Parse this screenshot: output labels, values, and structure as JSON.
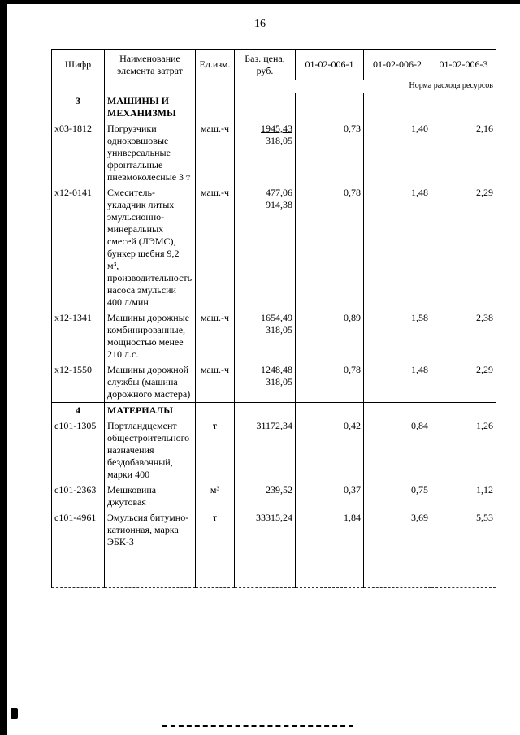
{
  "page_number": "16",
  "table": {
    "headers": {
      "code": "Шифр",
      "name": "Наименование элемента затрат",
      "unit": "Ед.изм.",
      "price": "Баз. цена, руб.",
      "norm1": "01-02-006-1",
      "norm2": "01-02-006-2",
      "norm3": "01-02-006-3"
    },
    "subheader": "Норма расхода ресурсов",
    "sections": [
      {
        "number": "3",
        "title": "МАШИНЫ И МЕХАНИЗМЫ",
        "rows": [
          {
            "code": "х03-1812",
            "name": "Погрузчики одноковшовые универсальные фронтальные пневмоколесные 3 т",
            "unit": "маш.-ч",
            "price": "1945,43",
            "price2": "318,05",
            "norms": [
              "0,73",
              "1,40",
              "2,16"
            ]
          },
          {
            "code": "х12-0141",
            "name": "Смеситель-укладчик литых эмульсионно-минеральных смесей (ЛЭМС), бункер щебня 9,2 м³, производительность насоса эмульсии 400 л/мин",
            "unit": "маш.-ч",
            "price": "477,06",
            "price2": "914,38",
            "norms": [
              "0,78",
              "1,48",
              "2,29"
            ]
          },
          {
            "code": "х12-1341",
            "name": "Машины дорожные комбинированные, мощностью менее 210 л.с.",
            "unit": "маш.-ч",
            "price": "1654,49",
            "price2": "318,05",
            "norms": [
              "0,89",
              "1,58",
              "2,38"
            ]
          },
          {
            "code": "х12-1550",
            "name": "Машины дорожной службы (машина дорожного мастера)",
            "unit": "маш.-ч",
            "price": "1248,48",
            "price2": "318,05",
            "norms": [
              "0,78",
              "1,48",
              "2,29"
            ]
          }
        ]
      },
      {
        "number": "4",
        "title": "МАТЕРИАЛЫ",
        "rows": [
          {
            "code": "с101-1305",
            "name": "Портландцемент общестроительного назначения бездобавочный, марки 400",
            "unit": "т",
            "price": "31172,34",
            "price2": "",
            "norms": [
              "0,42",
              "0,84",
              "1,26"
            ]
          },
          {
            "code": "с101-2363",
            "name": "Мешковина джутовая",
            "unit": "м³",
            "price": "239,52",
            "price2": "",
            "norms": [
              "0,37",
              "0,75",
              "1,12"
            ]
          },
          {
            "code": "с101-4961",
            "name": "Эмульсия битумно-катионная, марка ЭБК-3",
            "unit": "т",
            "price": "33315,24",
            "price2": "",
            "norms": [
              "1,84",
              "3,69",
              "5,53"
            ]
          }
        ]
      }
    ]
  }
}
